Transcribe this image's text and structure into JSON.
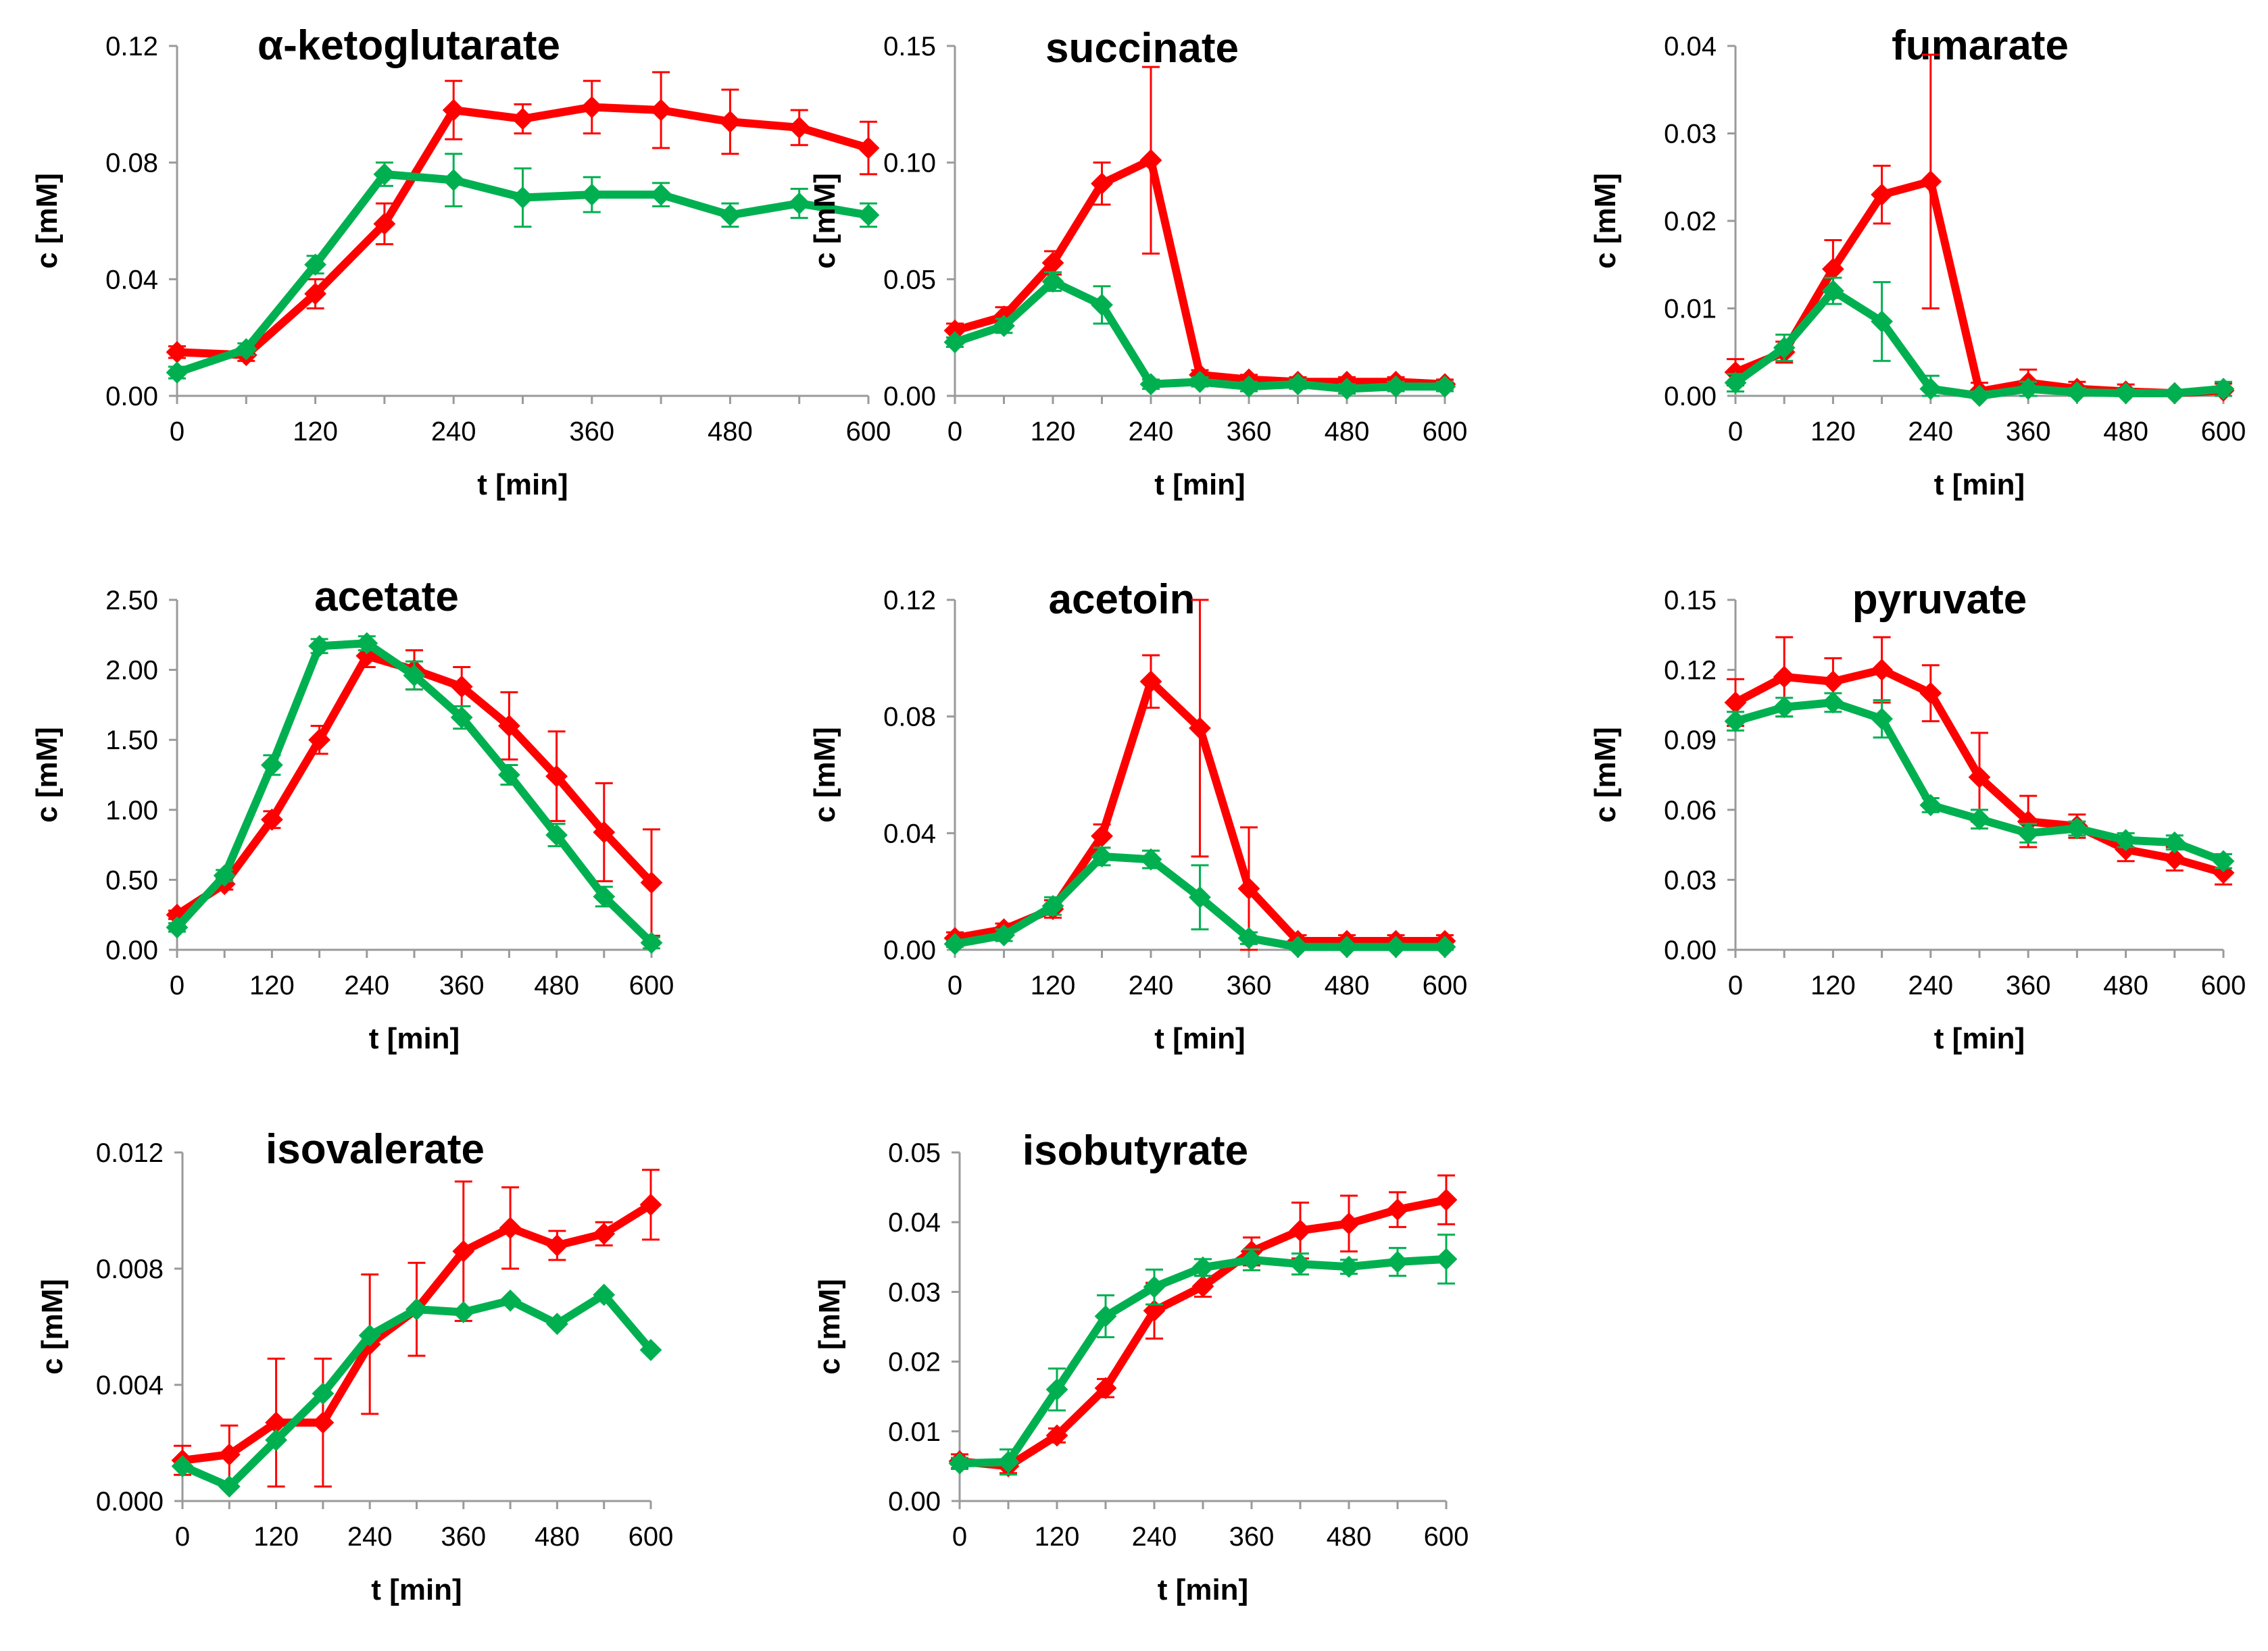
{
  "chart_data": [
    {
      "type": "line",
      "title": "α-ketoglutarate",
      "xlabel": "t [min]",
      "ylabel": "c [mM]",
      "xlim": [
        0,
        600
      ],
      "ylim": [
        0,
        0.12
      ],
      "xticks": [
        "0",
        "120",
        "240",
        "360",
        "480",
        "600"
      ],
      "yticks": [
        "0.00",
        "0.04",
        "0.08",
        "0.12"
      ],
      "x": [
        0,
        60,
        120,
        180,
        240,
        300,
        360,
        420,
        480,
        540,
        600
      ],
      "series": [
        {
          "name": "red",
          "color": "#ff0000",
          "values": [
            0.015,
            0.014,
            0.035,
            0.059,
            0.098,
            0.095,
            0.099,
            0.098,
            0.094,
            0.092,
            0.085
          ],
          "errors": [
            0.002,
            0.002,
            0.005,
            0.007,
            0.01,
            0.005,
            0.009,
            0.013,
            0.011,
            0.006,
            0.009
          ]
        },
        {
          "name": "green",
          "color": "#00b050",
          "values": [
            0.008,
            0.016,
            0.045,
            0.076,
            0.074,
            0.068,
            0.069,
            0.069,
            0.062,
            0.066,
            0.062
          ],
          "errors": [
            0.002,
            0.002,
            0.003,
            0.004,
            0.009,
            0.01,
            0.006,
            0.004,
            0.004,
            0.005,
            0.004
          ]
        }
      ]
    },
    {
      "type": "line",
      "title": "succinate",
      "xlabel": "t [min]",
      "ylabel": "c [mM]",
      "xlim": [
        0,
        600
      ],
      "ylim": [
        0,
        0.15
      ],
      "xticks": [
        "0",
        "120",
        "240",
        "360",
        "480",
        "600"
      ],
      "yticks": [
        "0.00",
        "0.05",
        "0.10",
        "0.15"
      ],
      "x": [
        0,
        60,
        120,
        180,
        240,
        300,
        360,
        420,
        480,
        540,
        600
      ],
      "series": [
        {
          "name": "red",
          "color": "#ff0000",
          "values": [
            0.028,
            0.034,
            0.057,
            0.091,
            0.101,
            0.009,
            0.007,
            0.006,
            0.006,
            0.006,
            0.005
          ],
          "errors": [
            0.003,
            0.004,
            0.005,
            0.009,
            0.04,
            0.002,
            0.002,
            0.002,
            0.002,
            0.002,
            0.002
          ]
        },
        {
          "name": "green",
          "color": "#00b050",
          "values": [
            0.023,
            0.03,
            0.049,
            0.039,
            0.005,
            0.006,
            0.004,
            0.005,
            0.003,
            0.004,
            0.004
          ],
          "errors": [
            0.002,
            0.003,
            0.004,
            0.008,
            0.002,
            0.002,
            0.002,
            0.002,
            0.002,
            0.002,
            0.002
          ]
        }
      ]
    },
    {
      "type": "line",
      "title": "fumarate",
      "xlabel": "t [min]",
      "ylabel": "c [mM]",
      "xlim": [
        0,
        600
      ],
      "ylim": [
        0,
        0.04
      ],
      "xticks": [
        "0",
        "120",
        "240",
        "360",
        "480",
        "600"
      ],
      "yticks": [
        "0.00",
        "0.01",
        "0.02",
        "0.03",
        "0.04"
      ],
      "x": [
        0,
        60,
        120,
        180,
        240,
        300,
        360,
        420,
        480,
        540,
        600
      ],
      "series": [
        {
          "name": "red",
          "color": "#ff0000",
          "values": [
            0.0027,
            0.005,
            0.0145,
            0.023,
            0.0245,
            0.0005,
            0.0015,
            0.0008,
            0.0005,
            0.0003,
            0.0006
          ],
          "errors": [
            0.0015,
            0.0012,
            0.0033,
            0.0033,
            0.0145,
            0.001,
            0.0015,
            0.0008,
            0.0008,
            0.0003,
            0.0008
          ]
        },
        {
          "name": "green",
          "color": "#00b050",
          "values": [
            0.0015,
            0.0055,
            0.012,
            0.0085,
            0.0008,
            0.0,
            0.0008,
            0.0004,
            0.0003,
            0.0003,
            0.0008
          ],
          "errors": [
            0.001,
            0.0015,
            0.0015,
            0.0045,
            0.0015,
            0.0005,
            0.0008,
            0.0005,
            0.0005,
            0.0003,
            0.0008
          ]
        }
      ]
    },
    {
      "type": "line",
      "title": "acetate",
      "xlabel": "t [min]",
      "ylabel": "c [mM]",
      "xlim": [
        0,
        600
      ],
      "ylim": [
        0,
        2.5
      ],
      "xticks": [
        "0",
        "120",
        "240",
        "360",
        "480",
        "600"
      ],
      "yticks": [
        "0.00",
        "0.50",
        "1.00",
        "1.50",
        "2.00",
        "2.50"
      ],
      "x": [
        0,
        60,
        120,
        180,
        240,
        300,
        360,
        420,
        480,
        540,
        600
      ],
      "series": [
        {
          "name": "red",
          "color": "#ff0000",
          "values": [
            0.25,
            0.47,
            0.93,
            1.5,
            2.1,
            2.0,
            1.88,
            1.6,
            1.24,
            0.84,
            0.48
          ],
          "errors": [
            0.03,
            0.04,
            0.06,
            0.1,
            0.08,
            0.14,
            0.14,
            0.24,
            0.32,
            0.35,
            0.38
          ]
        },
        {
          "name": "green",
          "color": "#00b050",
          "values": [
            0.16,
            0.53,
            1.32,
            2.17,
            2.19,
            1.96,
            1.66,
            1.25,
            0.82,
            0.38,
            0.05
          ],
          "errors": [
            0.03,
            0.04,
            0.07,
            0.05,
            0.05,
            0.1,
            0.08,
            0.07,
            0.08,
            0.07,
            0.04
          ]
        }
      ]
    },
    {
      "type": "line",
      "title": "acetoin",
      "xlabel": "t [min]",
      "ylabel": "c [mM]",
      "xlim": [
        0,
        600
      ],
      "ylim": [
        0,
        0.12
      ],
      "xticks": [
        "0",
        "120",
        "240",
        "360",
        "480",
        "600"
      ],
      "yticks": [
        "0.00",
        "0.04",
        "0.08",
        "0.12"
      ],
      "x": [
        0,
        60,
        120,
        180,
        240,
        300,
        360,
        420,
        480,
        540,
        600
      ],
      "series": [
        {
          "name": "red",
          "color": "#ff0000",
          "values": [
            0.004,
            0.007,
            0.014,
            0.039,
            0.092,
            0.076,
            0.021,
            0.003,
            0.003,
            0.003,
            0.003
          ],
          "errors": [
            0.002,
            0.002,
            0.003,
            0.004,
            0.009,
            0.044,
            0.021,
            0.002,
            0.002,
            0.002,
            0.002
          ]
        },
        {
          "name": "green",
          "color": "#00b050",
          "values": [
            0.002,
            0.005,
            0.015,
            0.032,
            0.031,
            0.018,
            0.004,
            0.001,
            0.001,
            0.001,
            0.001
          ],
          "errors": [
            0.001,
            0.002,
            0.003,
            0.003,
            0.003,
            0.011,
            0.002,
            0.001,
            0.001,
            0.001,
            0.001
          ]
        }
      ]
    },
    {
      "type": "line",
      "title": "pyruvate",
      "xlabel": "t [min]",
      "ylabel": "c [mM]",
      "xlim": [
        0,
        600
      ],
      "ylim": [
        0,
        0.15
      ],
      "xticks": [
        "0",
        "120",
        "240",
        "360",
        "480",
        "600"
      ],
      "yticks": [
        "0.00",
        "0.03",
        "0.06",
        "0.09",
        "0.12",
        "0.15"
      ],
      "x": [
        0,
        60,
        120,
        180,
        240,
        300,
        360,
        420,
        480,
        540,
        600
      ],
      "series": [
        {
          "name": "red",
          "color": "#ff0000",
          "values": [
            0.106,
            0.117,
            0.115,
            0.12,
            0.11,
            0.074,
            0.055,
            0.053,
            0.043,
            0.039,
            0.033
          ],
          "errors": [
            0.01,
            0.017,
            0.01,
            0.014,
            0.012,
            0.019,
            0.011,
            0.005,
            0.005,
            0.005,
            0.005
          ]
        },
        {
          "name": "green",
          "color": "#00b050",
          "values": [
            0.098,
            0.104,
            0.106,
            0.099,
            0.062,
            0.056,
            0.05,
            0.052,
            0.047,
            0.046,
            0.038
          ],
          "errors": [
            0.004,
            0.004,
            0.004,
            0.008,
            0.003,
            0.004,
            0.004,
            0.003,
            0.003,
            0.003,
            0.003
          ]
        }
      ]
    },
    {
      "type": "line",
      "title": "isovalerate",
      "xlabel": "t [min]",
      "ylabel": "c [mM]",
      "xlim": [
        0,
        600
      ],
      "ylim": [
        0,
        0.012
      ],
      "xticks": [
        "0",
        "120",
        "240",
        "360",
        "480",
        "600"
      ],
      "yticks": [
        "0.000",
        "0.004",
        "0.008",
        "0.012"
      ],
      "x": [
        0,
        60,
        120,
        180,
        240,
        300,
        360,
        420,
        480,
        540,
        600
      ],
      "series": [
        {
          "name": "red",
          "color": "#ff0000",
          "values": [
            0.0014,
            0.0016,
            0.0027,
            0.0027,
            0.0054,
            0.0066,
            0.0086,
            0.0094,
            0.0088,
            0.0092,
            0.0102
          ],
          "errors": [
            0.0005,
            0.001,
            0.0022,
            0.0022,
            0.0024,
            0.0016,
            0.0024,
            0.0014,
            0.0005,
            0.0004,
            0.0012
          ]
        },
        {
          "name": "green",
          "color": "#00b050",
          "values": [
            0.0012,
            0.0005,
            0.0021,
            0.0037,
            0.0057,
            0.0066,
            0.0065,
            0.0069,
            0.0061,
            0.0071,
            0.0052
          ]
        }
      ]
    },
    {
      "type": "line",
      "title": "isobutyrate",
      "xlabel": "t [min]",
      "ylabel": "c [mM]",
      "xlim": [
        0,
        600
      ],
      "ylim": [
        0,
        0.05
      ],
      "xticks": [
        "0",
        "120",
        "240",
        "360",
        "480",
        "600"
      ],
      "yticks": [
        "0.00",
        "0.01",
        "0.02",
        "0.03",
        "0.04",
        "0.05"
      ],
      "x": [
        0,
        60,
        120,
        180,
        240,
        300,
        360,
        420,
        480,
        540,
        600
      ],
      "series": [
        {
          "name": "red",
          "color": "#ff0000",
          "values": [
            0.0057,
            0.005,
            0.0094,
            0.0162,
            0.0273,
            0.0308,
            0.0358,
            0.0388,
            0.0398,
            0.0418,
            0.0432
          ],
          "errors": [
            0.001,
            0.001,
            0.001,
            0.0013,
            0.004,
            0.0015,
            0.002,
            0.004,
            0.004,
            0.0025,
            0.0035
          ]
        },
        {
          "name": "green",
          "color": "#00b050",
          "values": [
            0.0054,
            0.0056,
            0.016,
            0.0265,
            0.0307,
            0.0335,
            0.0346,
            0.034,
            0.0336,
            0.0343,
            0.0347
          ],
          "errors": [
            0.0008,
            0.0018,
            0.003,
            0.003,
            0.0025,
            0.0012,
            0.0015,
            0.0015,
            0.001,
            0.002,
            0.0035
          ]
        }
      ]
    }
  ]
}
